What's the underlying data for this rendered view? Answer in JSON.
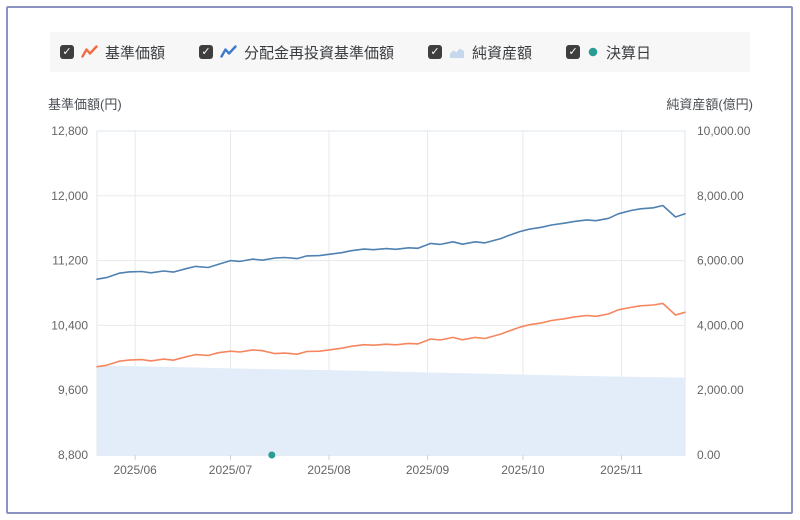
{
  "legend": {
    "items": [
      {
        "label": "基準価額",
        "checked": true,
        "type": "line",
        "color": "#f26b43"
      },
      {
        "label": "分配金再投資基準価額",
        "checked": true,
        "type": "line",
        "color": "#3d79cc"
      },
      {
        "label": "純資産額",
        "checked": true,
        "type": "area",
        "color": "#c6d9ec"
      },
      {
        "label": "決算日",
        "checked": true,
        "type": "dot",
        "color": "#2a9d92"
      }
    ]
  },
  "chart_data": {
    "type": "mixed",
    "grid": true,
    "legend_position": "top",
    "x_range": [
      "2025-05-20",
      "2025-11-21"
    ],
    "month_ticks": [
      {
        "date": "2025-06-01",
        "label": "2025/06"
      },
      {
        "date": "2025-07-01",
        "label": "2025/07"
      },
      {
        "date": "2025-08-01",
        "label": "2025/08"
      },
      {
        "date": "2025-09-01",
        "label": "2025/09"
      },
      {
        "date": "2025-10-01",
        "label": "2025/10"
      },
      {
        "date": "2025-11-01",
        "label": "2025/11"
      }
    ],
    "left_axis": {
      "title": "基準価額(円)",
      "min": 8800,
      "max": 12800,
      "tick_step": 800,
      "ticks": [
        {
          "value": 8800,
          "label": "8,800"
        },
        {
          "value": 9600,
          "label": "9,600"
        },
        {
          "value": 10400,
          "label": "10,400"
        },
        {
          "value": 11200,
          "label": "11,200"
        },
        {
          "value": 12000,
          "label": "12,000"
        },
        {
          "value": 12800,
          "label": "12,800"
        }
      ]
    },
    "right_axis": {
      "title": "純資産額(億円)",
      "min": 0,
      "max": 10000,
      "tick_step": 2000,
      "ticks": [
        {
          "value": 0,
          "label": "0.00"
        },
        {
          "value": 2000,
          "label": "2,000.00"
        },
        {
          "value": 4000,
          "label": "4,000.00"
        },
        {
          "value": 6000,
          "label": "6,000.00"
        },
        {
          "value": 8000,
          "label": "8,000.00"
        },
        {
          "value": 10000,
          "label": "10,000.00"
        }
      ]
    },
    "series": [
      {
        "name": "純資産額",
        "type": "area",
        "axis": "right",
        "color": "#e2edf9",
        "points": [
          [
            "2025-05-20",
            2760
          ],
          [
            "2025-06-01",
            2738
          ],
          [
            "2025-06-15",
            2712
          ],
          [
            "2025-07-01",
            2672
          ],
          [
            "2025-07-15",
            2648
          ],
          [
            "2025-08-01",
            2620
          ],
          [
            "2025-08-15",
            2588
          ],
          [
            "2025-09-01",
            2545
          ],
          [
            "2025-09-15",
            2518
          ],
          [
            "2025-10-01",
            2480
          ],
          [
            "2025-10-15",
            2452
          ],
          [
            "2025-11-01",
            2420
          ],
          [
            "2025-11-21",
            2390
          ]
        ]
      },
      {
        "name": "基準価額",
        "type": "line",
        "axis": "left",
        "color": "#f5865f",
        "points": [
          [
            "2025-05-20",
            9890
          ],
          [
            "2025-05-23",
            9908
          ],
          [
            "2025-05-27",
            9958
          ],
          [
            "2025-05-30",
            9972
          ],
          [
            "2025-06-03",
            9978
          ],
          [
            "2025-06-06",
            9962
          ],
          [
            "2025-06-10",
            9984
          ],
          [
            "2025-06-13",
            9970
          ],
          [
            "2025-06-17",
            10012
          ],
          [
            "2025-06-20",
            10040
          ],
          [
            "2025-06-24",
            10028
          ],
          [
            "2025-06-27",
            10062
          ],
          [
            "2025-07-01",
            10082
          ],
          [
            "2025-07-04",
            10072
          ],
          [
            "2025-07-08",
            10098
          ],
          [
            "2025-07-11",
            10088
          ],
          [
            "2025-07-15",
            10052
          ],
          [
            "2025-07-18",
            10058
          ],
          [
            "2025-07-22",
            10045
          ],
          [
            "2025-07-25",
            10078
          ],
          [
            "2025-07-29",
            10082
          ],
          [
            "2025-08-01",
            10098
          ],
          [
            "2025-08-05",
            10118
          ],
          [
            "2025-08-08",
            10142
          ],
          [
            "2025-08-12",
            10162
          ],
          [
            "2025-08-15",
            10155
          ],
          [
            "2025-08-19",
            10168
          ],
          [
            "2025-08-22",
            10160
          ],
          [
            "2025-08-26",
            10178
          ],
          [
            "2025-08-29",
            10172
          ],
          [
            "2025-09-02",
            10232
          ],
          [
            "2025-09-05",
            10220
          ],
          [
            "2025-09-09",
            10252
          ],
          [
            "2025-09-12",
            10222
          ],
          [
            "2025-09-16",
            10252
          ],
          [
            "2025-09-19",
            10238
          ],
          [
            "2025-09-24",
            10292
          ],
          [
            "2025-09-26",
            10322
          ],
          [
            "2025-09-30",
            10378
          ],
          [
            "2025-10-03",
            10408
          ],
          [
            "2025-10-07",
            10432
          ],
          [
            "2025-10-10",
            10460
          ],
          [
            "2025-10-14",
            10482
          ],
          [
            "2025-10-17",
            10502
          ],
          [
            "2025-10-21",
            10522
          ],
          [
            "2025-10-24",
            10512
          ],
          [
            "2025-10-28",
            10542
          ],
          [
            "2025-10-31",
            10592
          ],
          [
            "2025-11-04",
            10622
          ],
          [
            "2025-11-07",
            10642
          ],
          [
            "2025-11-11",
            10652
          ],
          [
            "2025-11-14",
            10672
          ],
          [
            "2025-11-18",
            10528
          ],
          [
            "2025-11-21",
            10562
          ]
        ]
      },
      {
        "name": "分配金再投資基準価額",
        "type": "line",
        "axis": "left",
        "color": "#4f81b2",
        "points": [
          [
            "2025-05-20",
            10970
          ],
          [
            "2025-05-23",
            10990
          ],
          [
            "2025-05-27",
            11045
          ],
          [
            "2025-05-30",
            11060
          ],
          [
            "2025-06-03",
            11065
          ],
          [
            "2025-06-06",
            11050
          ],
          [
            "2025-06-10",
            11072
          ],
          [
            "2025-06-13",
            11058
          ],
          [
            "2025-06-17",
            11100
          ],
          [
            "2025-06-20",
            11128
          ],
          [
            "2025-06-24",
            11115
          ],
          [
            "2025-06-27",
            11152
          ],
          [
            "2025-07-01",
            11200
          ],
          [
            "2025-07-04",
            11190
          ],
          [
            "2025-07-08",
            11218
          ],
          [
            "2025-07-11",
            11205
          ],
          [
            "2025-07-15",
            11232
          ],
          [
            "2025-07-18",
            11238
          ],
          [
            "2025-07-22",
            11225
          ],
          [
            "2025-07-25",
            11258
          ],
          [
            "2025-07-29",
            11262
          ],
          [
            "2025-08-01",
            11278
          ],
          [
            "2025-08-05",
            11298
          ],
          [
            "2025-08-08",
            11322
          ],
          [
            "2025-08-12",
            11342
          ],
          [
            "2025-08-15",
            11335
          ],
          [
            "2025-08-19",
            11348
          ],
          [
            "2025-08-22",
            11340
          ],
          [
            "2025-08-26",
            11358
          ],
          [
            "2025-08-29",
            11352
          ],
          [
            "2025-09-02",
            11412
          ],
          [
            "2025-09-05",
            11400
          ],
          [
            "2025-09-09",
            11432
          ],
          [
            "2025-09-12",
            11402
          ],
          [
            "2025-09-16",
            11432
          ],
          [
            "2025-09-19",
            11418
          ],
          [
            "2025-09-24",
            11472
          ],
          [
            "2025-09-26",
            11502
          ],
          [
            "2025-09-30",
            11558
          ],
          [
            "2025-10-03",
            11588
          ],
          [
            "2025-10-07",
            11612
          ],
          [
            "2025-10-10",
            11640
          ],
          [
            "2025-10-14",
            11662
          ],
          [
            "2025-10-17",
            11682
          ],
          [
            "2025-10-21",
            11702
          ],
          [
            "2025-10-24",
            11692
          ],
          [
            "2025-10-28",
            11722
          ],
          [
            "2025-10-31",
            11778
          ],
          [
            "2025-11-04",
            11818
          ],
          [
            "2025-11-07",
            11840
          ],
          [
            "2025-11-11",
            11852
          ],
          [
            "2025-11-14",
            11880
          ],
          [
            "2025-11-18",
            11738
          ],
          [
            "2025-11-21",
            11778
          ]
        ]
      },
      {
        "name": "決算日",
        "type": "marker",
        "axis": "right",
        "color": "#2a9d92",
        "points": [
          [
            "2025-07-14",
            0
          ]
        ]
      }
    ],
    "colors": {
      "gridline": "#e9e9e9",
      "plot_border": "#dfe4ec",
      "axis_line": "#ccd5e4",
      "tick_mark": "#c9d2e0",
      "tick_text": "#666666",
      "card_border": "#8b94bf",
      "legend_background": "#f7f7f8"
    }
  }
}
